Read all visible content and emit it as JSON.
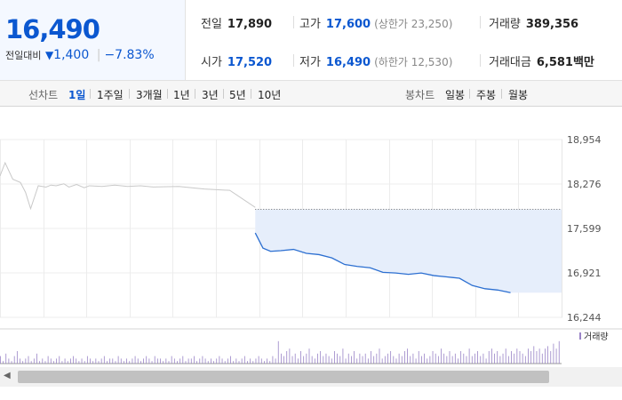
{
  "quote": {
    "price": "16,490",
    "change_label": "전일대비",
    "change_arrow": "▼",
    "change_amount": "1,400",
    "change_rate": "−7.83%",
    "stats": {
      "prev_close": {
        "label": "전일",
        "value": "17,890"
      },
      "high": {
        "label": "고가",
        "value": "17,600",
        "sub": "(상한가 23,250)"
      },
      "volume": {
        "label": "거래량",
        "value": "389,356"
      },
      "open": {
        "label": "시가",
        "value": "17,520"
      },
      "low": {
        "label": "저가",
        "value": "16,490",
        "sub": "(하한가 12,530)"
      },
      "amount": {
        "label": "거래대금",
        "value": "6,581",
        "unit": "백만"
      }
    }
  },
  "toolbar": {
    "line_chart_label": "선차트",
    "periods": [
      "1일",
      "1주일",
      "3개월",
      "1년",
      "3년",
      "5년",
      "10년"
    ],
    "selected_period": "1일",
    "candle_chart_label": "봉차트",
    "candle_periods": [
      "일봉",
      "주봉",
      "월봉"
    ]
  },
  "colors": {
    "accent": "#0b57d0",
    "line_today": "#2c6fd1",
    "fill_today": "#e6eefb",
    "line_prev": "#c9c9c9",
    "volume_bar": "#9a84c7"
  },
  "chart_data": {
    "type": "line",
    "ylim": [
      16244,
      18954
    ],
    "y_ticks": [
      "18,954",
      "18,276",
      "17,599",
      "16,921",
      "16,244"
    ],
    "reference_level": 17890,
    "series": [
      {
        "x": [
          0,
          2,
          5,
          8,
          10,
          12,
          15,
          18,
          20,
          22,
          25,
          27,
          30,
          33,
          35,
          40,
          45,
          50,
          55,
          60,
          70,
          80,
          90,
          100
        ],
        "values": [
          18400,
          18600,
          18350,
          18300,
          18150,
          17900,
          18250,
          18230,
          18260,
          18250,
          18280,
          18230,
          18270,
          18220,
          18250,
          18240,
          18260,
          18240,
          18250,
          18230,
          18240,
          18200,
          18180,
          17920
        ]
      },
      {
        "x": [
          100,
          103,
          106,
          110,
          115,
          120,
          125,
          130,
          135,
          140,
          145,
          150,
          155,
          160,
          165,
          170,
          175,
          180,
          185,
          190,
          195,
          200
        ],
        "values": [
          17530,
          17300,
          17250,
          17260,
          17280,
          17220,
          17200,
          17150,
          17050,
          17020,
          17000,
          16930,
          16920,
          16900,
          16920,
          16880,
          16860,
          16840,
          16730,
          16680,
          16660,
          16620
        ]
      }
    ],
    "volume": {
      "legend": "거래량",
      "values": [
        3,
        1,
        4,
        2,
        1,
        3,
        5,
        2,
        1,
        2,
        3,
        1,
        2,
        4,
        1,
        2,
        1,
        3,
        2,
        1,
        2,
        3,
        1,
        2,
        1,
        2,
        3,
        2,
        1,
        2,
        1,
        3,
        2,
        1,
        2,
        1,
        2,
        3,
        1,
        2,
        2,
        1,
        3,
        2,
        1,
        2,
        1,
        2,
        3,
        2,
        1,
        2,
        3,
        2,
        1,
        3,
        2,
        2,
        1,
        2,
        1,
        3,
        2,
        1,
        2,
        3,
        1,
        2,
        2,
        3,
        1,
        2,
        3,
        2,
        1,
        2,
        1,
        2,
        3,
        2,
        1,
        2,
        3,
        1,
        2,
        1,
        2,
        3,
        1,
        2,
        1,
        2,
        3,
        2,
        1,
        2,
        1,
        3,
        2,
        9,
        4,
        3,
        5,
        6,
        3,
        4,
        2,
        5,
        3,
        4,
        6,
        3,
        2,
        4,
        5,
        3,
        4,
        3,
        2,
        5,
        4,
        3,
        6,
        2,
        4,
        3,
        5,
        2,
        4,
        3,
        4,
        2,
        5,
        3,
        4,
        6,
        2,
        3,
        4,
        5,
        3,
        2,
        4,
        3,
        5,
        6,
        3,
        4,
        2,
        5,
        3,
        4,
        2,
        3,
        5,
        4,
        3,
        6,
        4,
        3,
        5,
        3,
        4,
        2,
        5,
        4,
        3,
        6,
        3,
        4,
        5,
        3,
        4,
        2,
        5,
        6,
        4,
        5,
        3,
        4,
        6,
        3,
        5,
        4,
        6,
        5,
        4,
        3,
        6,
        5,
        7,
        5,
        6,
        4,
        6,
        7,
        5,
        8,
        6,
        9
      ]
    }
  }
}
